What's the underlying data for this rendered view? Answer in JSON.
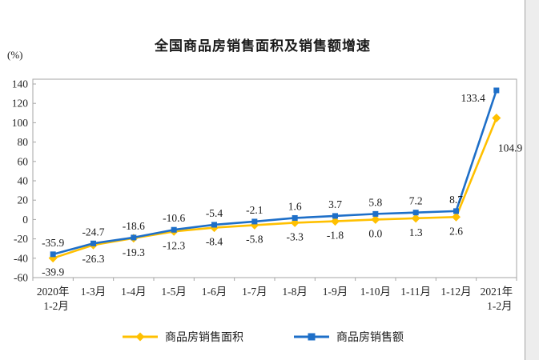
{
  "chart_data": {
    "type": "line",
    "title": "全国商品房销售面积及销售额增速",
    "ylabel": "(%)",
    "xlabel": "",
    "ylim": [
      -60,
      140
    ],
    "yticks": [
      140,
      120,
      100,
      80,
      60,
      40,
      20,
      0,
      -20,
      -40,
      -60
    ],
    "grid": false,
    "legend_position": "bottom",
    "categories": [
      "2020年\n1-2月",
      "1-3月",
      "1-4月",
      "1-5月",
      "1-6月",
      "1-7月",
      "1-8月",
      "1-9月",
      "1-10月",
      "1-11月",
      "1-12月",
      "2021年\n1-2月"
    ],
    "series": [
      {
        "name": "商品房销售面积",
        "color": "#FFC000",
        "marker": "diamond",
        "label_side": "below",
        "values": [
          -39.9,
          -26.3,
          -19.3,
          -12.3,
          -8.4,
          -5.8,
          -3.3,
          -1.8,
          0.0,
          1.3,
          2.6,
          104.9
        ],
        "labels": [
          "-39.9",
          "-26.3",
          "-19.3",
          "-12.3",
          "-8.4",
          "-5.8",
          "-3.3",
          "-1.8",
          "0.0",
          "1.3",
          "2.6",
          "104.9"
        ]
      },
      {
        "name": "商品房销售额",
        "color": "#1E6FC8",
        "marker": "square",
        "label_side": "above",
        "values": [
          -35.9,
          -24.7,
          -18.6,
          -10.6,
          -5.4,
          -2.1,
          1.6,
          3.7,
          5.8,
          7.2,
          8.7,
          133.4
        ],
        "labels": [
          "-35.9",
          "-24.7",
          "-18.6",
          "-10.6",
          "-5.4",
          "-2.1",
          "1.6",
          "3.7",
          "5.8",
          "7.2",
          "8.7",
          "133.4"
        ]
      }
    ],
    "colors": {
      "axis": "#A6A6A6",
      "text": "#1a1a1a",
      "tick_text": "#262626",
      "background": "#ffffff"
    }
  }
}
